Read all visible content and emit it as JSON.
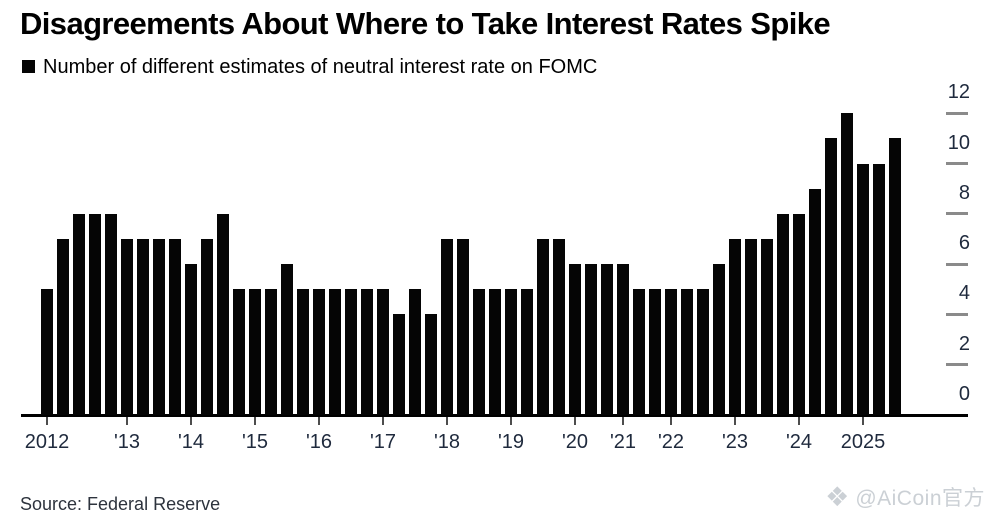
{
  "header": {
    "title": "Disagreements About Where to Take Interest Rates Spike",
    "legend_label": "Number of different estimates of neutral interest rate on FOMC"
  },
  "footer": {
    "source": "Source: Federal Reserve",
    "watermark": "@AiCoin官方",
    "watermark_icon": "aicoin-diamond-logo"
  },
  "colors": {
    "bar": "#050505",
    "axis_label": "#1f2a3d",
    "x_tick": "#4d4d4d",
    "y_dash": "#8a8a8a",
    "source_text": "#2d333d",
    "watermark": "#c9ced3"
  },
  "chart_data": {
    "type": "bar",
    "title": "Disagreements About Where to Take Interest Rates Spike",
    "legend": [
      "Number of different estimates of neutral interest rate on FOMC"
    ],
    "legend_position": "top-left",
    "ylabel": "",
    "xlabel": "",
    "ylim": [
      0,
      12
    ],
    "yticks": [
      0,
      2,
      4,
      6,
      8,
      10,
      12
    ],
    "ytick_side": "right",
    "grid": false,
    "bar_color": "#050505",
    "note": "One bar per FOMC Summary of Economic Projections release; year tick marks the first bar of each year",
    "groups": [
      {
        "label": "2012",
        "values": [
          5,
          7,
          8,
          8,
          8
        ]
      },
      {
        "label": "'13",
        "values": [
          7,
          7,
          7,
          7
        ]
      },
      {
        "label": "'14",
        "values": [
          6,
          7,
          8,
          5
        ]
      },
      {
        "label": "'15",
        "values": [
          5,
          5,
          6,
          5
        ]
      },
      {
        "label": "'16",
        "values": [
          5,
          5,
          5,
          5
        ]
      },
      {
        "label": "'17",
        "values": [
          5,
          4,
          5,
          4
        ]
      },
      {
        "label": "'18",
        "values": [
          7,
          7,
          5,
          5
        ]
      },
      {
        "label": "'19",
        "values": [
          5,
          5,
          7,
          7
        ]
      },
      {
        "label": "'20",
        "values": [
          6,
          6,
          6
        ]
      },
      {
        "label": "'21",
        "values": [
          6,
          5,
          5
        ]
      },
      {
        "label": "'22",
        "values": [
          5,
          5,
          5,
          6
        ]
      },
      {
        "label": "'23",
        "values": [
          7,
          7,
          7,
          8
        ]
      },
      {
        "label": "'24",
        "values": [
          8,
          9,
          11,
          12
        ]
      },
      {
        "label": "2025",
        "values": [
          10,
          10,
          11
        ]
      }
    ]
  }
}
